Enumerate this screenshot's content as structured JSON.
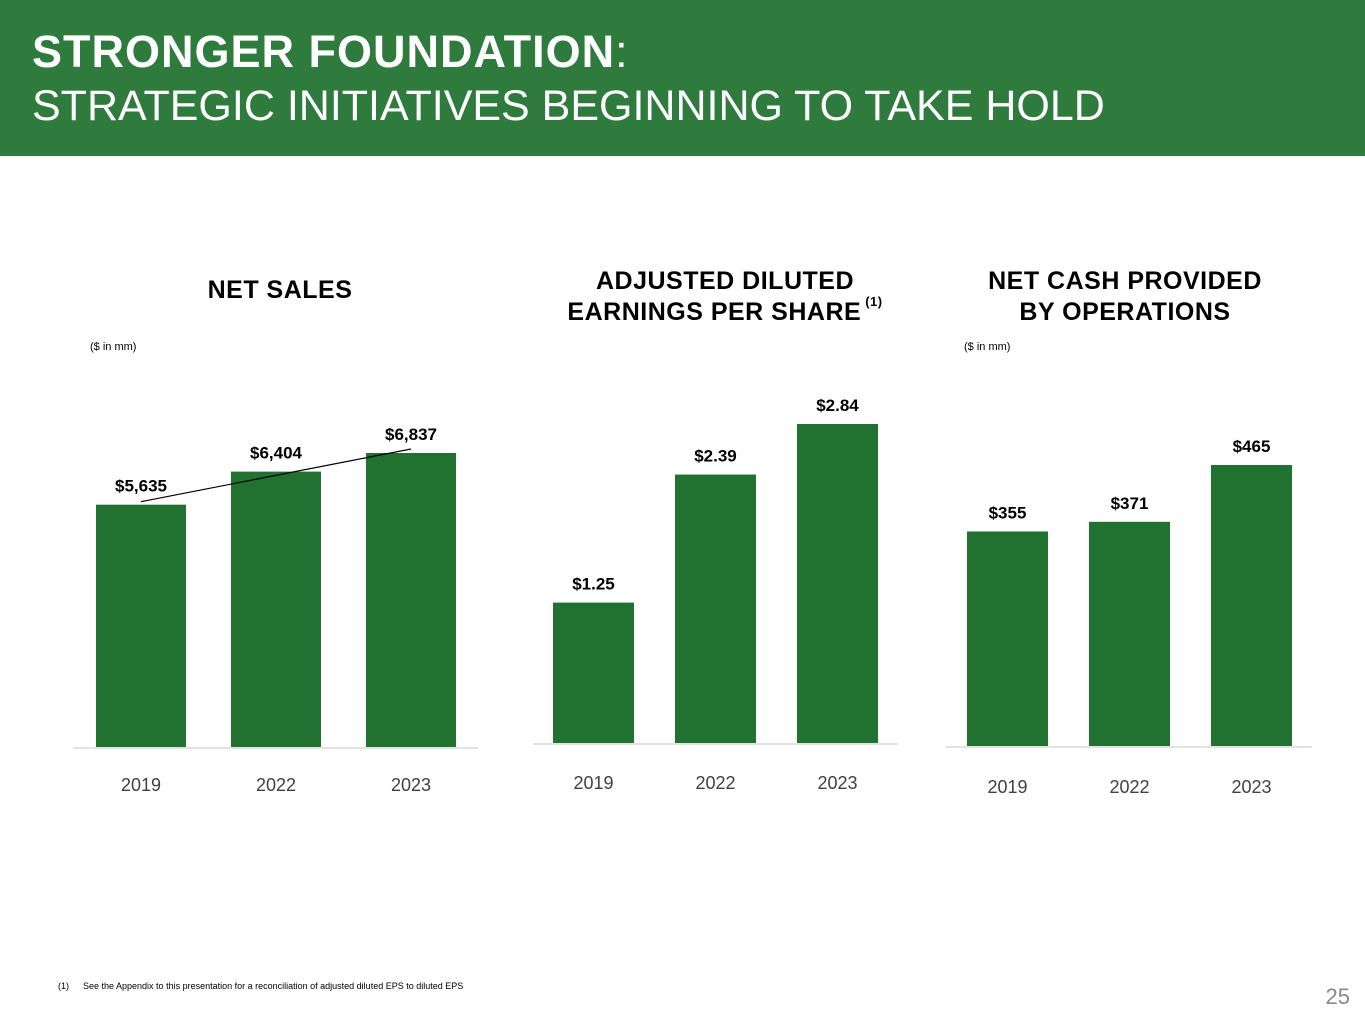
{
  "header": {
    "title_bold": "STRONGER FOUNDATION",
    "title_colon": ":",
    "subtitle": "STRATEGIC INITIATIVES BEGINNING TO TAKE HOLD"
  },
  "colors": {
    "header_bg": "#2f7a3d",
    "bar": "#217131",
    "axis": "#d9d9d9"
  },
  "chart_data": [
    {
      "type": "bar",
      "title": "NET SALES",
      "unit_note": "($ in mm)",
      "categories": [
        "2019",
        "2022",
        "2023"
      ],
      "values": [
        5635,
        6404,
        6837
      ],
      "value_labels": [
        "$5,635",
        "$6,404",
        "$6,837"
      ],
      "trend_line": true,
      "ylim": [
        0,
        6837
      ]
    },
    {
      "type": "bar",
      "title_line1": "ADJUSTED DILUTED",
      "title_line2": "EARNINGS PER SHARE",
      "title_footnote_mark": "(1)",
      "categories": [
        "2019",
        "2022",
        "2023"
      ],
      "values": [
        1.25,
        2.39,
        2.84
      ],
      "value_labels": [
        "$1.25",
        "$2.39",
        "$2.84"
      ],
      "ylim": [
        0,
        2.84
      ]
    },
    {
      "type": "bar",
      "title_line1": "NET CASH PROVIDED",
      "title_line2": "BY OPERATIONS",
      "unit_note": "($ in mm)",
      "categories": [
        "2019",
        "2022",
        "2023"
      ],
      "values": [
        355,
        371,
        465
      ],
      "value_labels": [
        "$355",
        "$371",
        "$465"
      ],
      "ylim": [
        0,
        465
      ]
    }
  ],
  "footnote": {
    "mark": "(1)",
    "text": "See the Appendix to this presentation for a reconciliation of adjusted diluted EPS to diluted EPS"
  },
  "page_number": "25"
}
